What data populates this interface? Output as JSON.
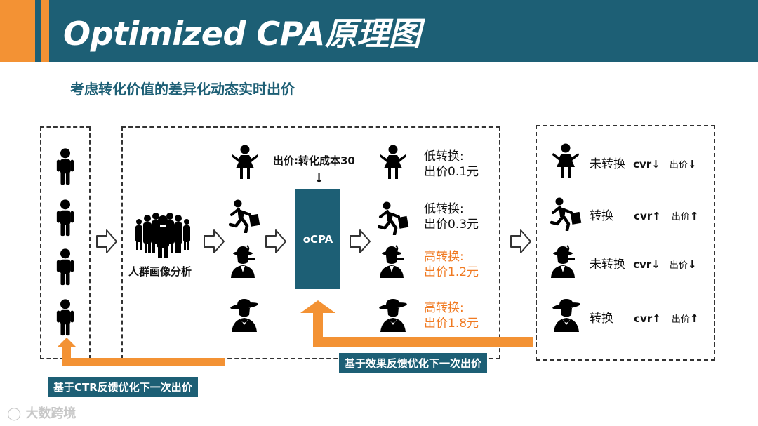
{
  "header": {
    "title": "Optimized CPA原理图",
    "subtitle": "考虑转化价值的差异化动态实时出价"
  },
  "middle": {
    "crowd_label": "人群画像分析",
    "bid_note": "出价:转化成本30",
    "bid_arrow": "↓",
    "ocpa_label": "oCPA"
  },
  "bids": [
    {
      "line1": "低转换:",
      "line2": "出价0.1元"
    },
    {
      "line1": "低转换:",
      "line2": "出价0.3元"
    },
    {
      "line1": "高转换:",
      "line2": "出价1.2元"
    },
    {
      "line1": "高转换:",
      "line2": "出价1.8元"
    }
  ],
  "results": [
    {
      "status": "未转换",
      "cvr": "cvr",
      "cvr_arrow": "↓",
      "bid": "出价",
      "bid_arrow": "↓"
    },
    {
      "status": "转换",
      "cvr": "cvr",
      "cvr_arrow": "↑",
      "bid": "出价",
      "bid_arrow": "↑"
    },
    {
      "status": "未转换",
      "cvr": "cvr",
      "cvr_arrow": "↓",
      "bid": "出价",
      "bid_arrow": "↓"
    },
    {
      "status": "转换",
      "cvr": "cvr",
      "cvr_arrow": "↑",
      "bid": "出价",
      "bid_arrow": "↑"
    }
  ],
  "feedback": {
    "effect_label": "基于效果反馈优化下一次出价",
    "ctr_label": "基于CTR反馈优化下一次出价"
  },
  "watermark": "大数跨境",
  "colors": {
    "header": "#1d5f75",
    "accent": "#f39234",
    "highlight": "#f07a22"
  }
}
